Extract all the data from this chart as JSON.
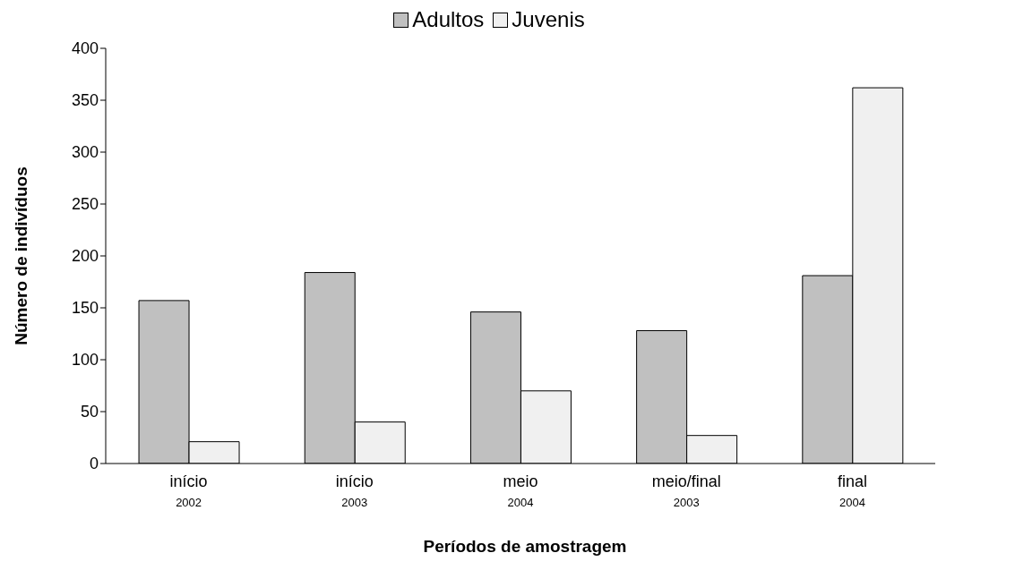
{
  "chart_data": {
    "type": "bar",
    "xlabel": "Períodos de amostragem",
    "ylabel": "Número de indivíduos",
    "categories": [
      "início\n2002",
      "início\n2003",
      "meio\n2004",
      "meio/final\n2003",
      "final\n2004"
    ],
    "series": [
      {
        "name": "Adultos",
        "color": "#c0c0c0",
        "values": [
          157,
          184,
          146,
          128,
          181
        ]
      },
      {
        "name": "Juvenis",
        "color": "#f0f0f0",
        "values": [
          21,
          40,
          70,
          27,
          362
        ]
      }
    ],
    "ylim": [
      0,
      400
    ],
    "yticks": [
      0,
      50,
      100,
      150,
      200,
      250,
      300,
      350,
      400
    ],
    "grid": false,
    "legend": "top"
  }
}
